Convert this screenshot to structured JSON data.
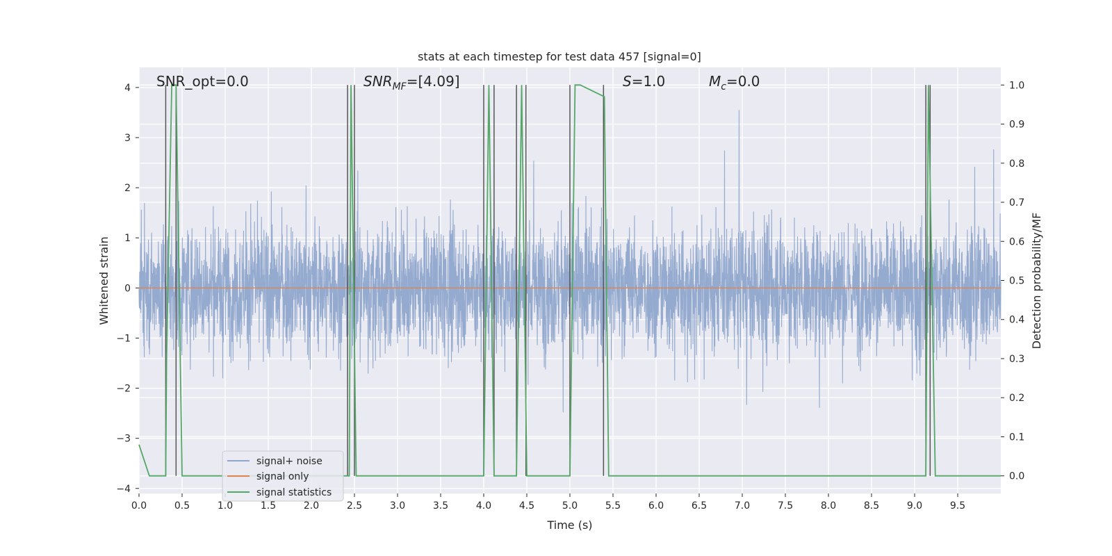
{
  "chart_data": {
    "type": "line",
    "title": "stats at each timestep for test data 457 [signal=0]",
    "xlabel": "Time (s)",
    "ylabel_left": "Whitened strain",
    "ylabel_right": "Detection probability/MF",
    "xlim": [
      0.0,
      10.0
    ],
    "ylim_left": [
      -4.1,
      4.4
    ],
    "ylim_right": [
      -0.045,
      1.045
    ],
    "x_ticks": [
      "0.0",
      "0.5",
      "1.0",
      "1.5",
      "2.0",
      "2.5",
      "3.0",
      "3.5",
      "4.0",
      "4.5",
      "5.0",
      "5.5",
      "6.0",
      "6.5",
      "7.0",
      "7.5",
      "8.0",
      "8.5",
      "9.0",
      "9.5"
    ],
    "y_left_ticks": [
      "4",
      "3",
      "2",
      "1",
      "0",
      "−1",
      "−2",
      "−3",
      "−4"
    ],
    "y_right_ticks": [
      "1.0",
      "0.9",
      "0.8",
      "0.7",
      "0.6",
      "0.5",
      "0.4",
      "0.3",
      "0.2",
      "0.1",
      "0.0"
    ],
    "grid": true,
    "legend_position": "lower-left",
    "annotations": {
      "snr_opt": "SNR_opt=0.0",
      "snr_mf_main": "SNR",
      "snr_mf_sub": "MF",
      "snr_mf_value": "=[4.09]",
      "s_main": "S",
      "s_value": "=1.0",
      "mc_main": "M",
      "mc_sub": "c",
      "mc_value": "=0.0"
    },
    "series": [
      {
        "name": "signal+ noise",
        "axis": "left",
        "color": "#8fa6cc",
        "description_of_values": "noise, amplitude envelope approx ±2 to ±3.5"
      },
      {
        "name": "signal only",
        "axis": "left",
        "color": "#dd8452",
        "x": [
          0.0,
          10.0
        ],
        "y": [
          0.0,
          0.0
        ]
      },
      {
        "name": "signal statistics",
        "axis": "right",
        "color": "#55a868",
        "x": [
          0.0,
          0.06,
          0.12,
          0.31,
          0.32,
          0.38,
          0.43,
          0.5,
          2.44,
          2.46,
          2.52,
          4.0,
          4.06,
          4.12,
          4.38,
          4.44,
          4.5,
          5.0,
          5.06,
          5.12,
          5.4,
          5.45,
          9.13,
          9.16,
          9.24,
          10.0
        ],
        "y": [
          0.08,
          0.04,
          0.0,
          0.0,
          0.3,
          1.0,
          1.0,
          0.0,
          0.0,
          1.0,
          0.0,
          0.0,
          1.0,
          0.0,
          0.0,
          1.0,
          0.0,
          0.0,
          1.0,
          1.0,
          0.97,
          0.0,
          0.0,
          1.0,
          0.0,
          0.0
        ]
      },
      {
        "name": "",
        "axis": "right",
        "color": "#555555",
        "type": "vlines",
        "x": [
          0.31,
          0.43,
          2.42,
          2.5,
          4.0,
          4.12,
          4.38,
          4.49,
          5.0,
          5.39,
          9.13,
          9.18
        ]
      }
    ]
  }
}
